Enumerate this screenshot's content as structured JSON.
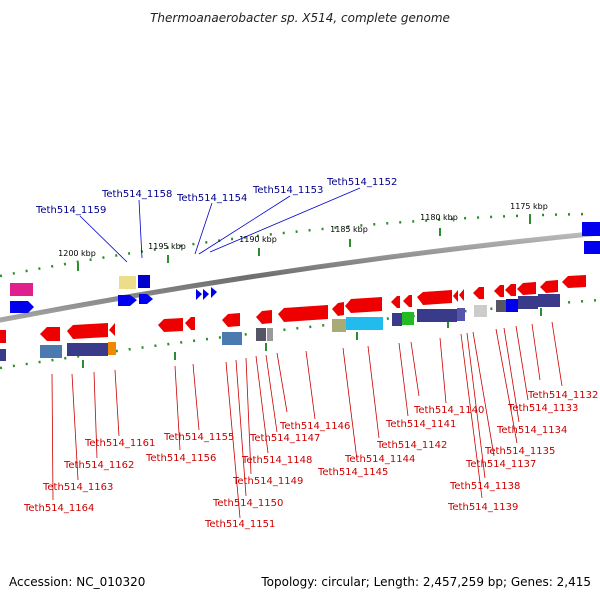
{
  "title": "Thermoanaerobacter sp. X514, complete genome",
  "footer": {
    "accession": "Accession: NC_010320",
    "summary": "Topology: circular; Length: 2,457,259 bp; Genes: 2,415"
  },
  "colors": {
    "backbone": "#808080",
    "tick": "#2e8b2e",
    "label_top": "#00008b",
    "label_bottom": "#cc0000",
    "leader_top": "#0000cc",
    "leader_bottom": "#cc0000"
  },
  "scale_labels": [
    "1200 kbp",
    "1195 kbp",
    "1190 kbp",
    "1185 kbp",
    "1180 kbp",
    "1175 kbp"
  ],
  "top_labels": [
    "Teth514_1159",
    "Teth514_1158",
    "Teth514_1154",
    "Teth514_1153",
    "Teth514_1152"
  ],
  "bottom_labels": [
    "Teth514_1164",
    "Teth514_1163",
    "Teth514_1162",
    "Teth514_1161",
    "Teth514_1156",
    "Teth514_1155",
    "Teth514_1151",
    "Teth514_1150",
    "Teth514_1149",
    "Teth514_1148",
    "Teth514_1147",
    "Teth514_1146",
    "Teth514_1145",
    "Teth514_1144",
    "Teth514_1142",
    "Teth514_1141",
    "Teth514_1140",
    "Teth514_1139",
    "Teth514_1138",
    "Teth514_1137",
    "Teth514_1135",
    "Teth514_1134",
    "Teth514_1133",
    "Teth514_1132"
  ]
}
